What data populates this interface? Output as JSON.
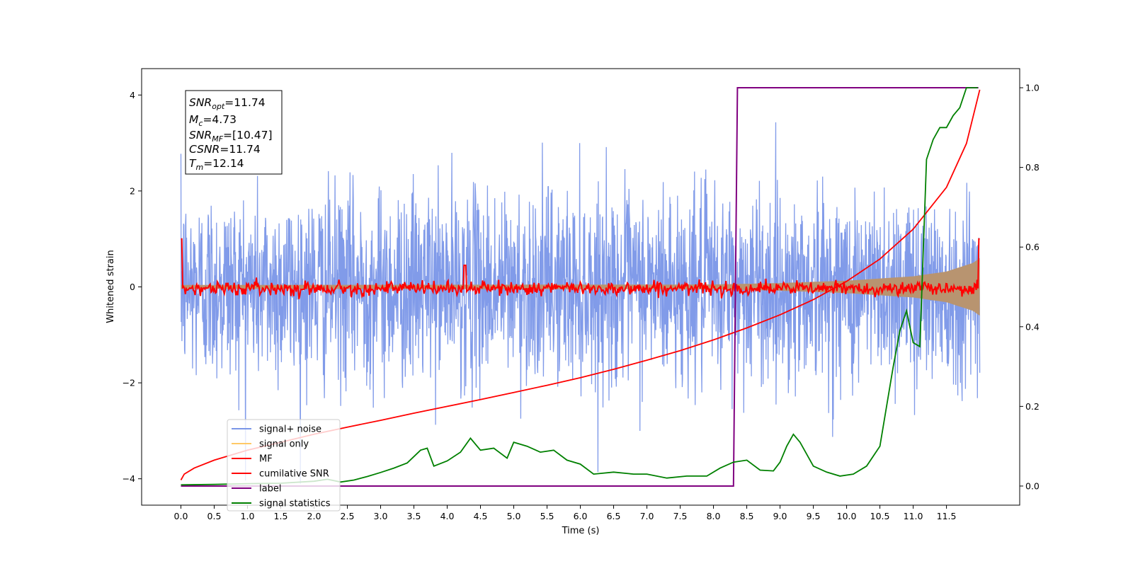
{
  "chart_data": {
    "type": "line",
    "xlabel": "Time (s)",
    "ylabel": "Whitened strain",
    "xlim": [
      -0.59,
      12.6
    ],
    "ylim": [
      -4.55,
      4.55
    ],
    "ylim_right": [
      -0.048,
      1.048
    ],
    "x_ticks": [
      "0.0",
      "0.5",
      "1.0",
      "1.5",
      "2.0",
      "2.5",
      "3.0",
      "3.5",
      "4.0",
      "4.5",
      "5.0",
      "5.5",
      "6.0",
      "6.5",
      "7.0",
      "7.5",
      "8.0",
      "8.5",
      "9.0",
      "9.5",
      "10.0",
      "10.5",
      "11.0",
      "11.5"
    ],
    "y_ticks_left": [
      "-4",
      "-2",
      "0",
      "2",
      "4"
    ],
    "y_ticks_right": [
      "0.0",
      "0.2",
      "0.4",
      "0.6",
      "0.8",
      "1.0"
    ],
    "grid": false,
    "legend_position": "lower-left",
    "legend": [
      {
        "label": "signal+ noise",
        "color": "#7a96e8"
      },
      {
        "label": "signal only",
        "color": "#ffc966"
      },
      {
        "label": "MF",
        "color": "#ff0000"
      },
      {
        "label": "cumilative SNR",
        "color": "#ff0000"
      },
      {
        "label": "label",
        "color": "#800080"
      },
      {
        "label": "signal statistics",
        "color": "#008000"
      }
    ],
    "info_box": [
      {
        "sym": "SNR",
        "sub": "opt",
        "val": "=11.74"
      },
      {
        "sym": "M",
        "sub": "c",
        "val": "=4.73"
      },
      {
        "sym": "SNR",
        "sub": "MF",
        "val": "=[10.47]"
      },
      {
        "sym": "CSNR",
        "sub": "",
        "val": "=11.74"
      },
      {
        "sym": "T",
        "sub": "m",
        "val": "=12.14"
      }
    ],
    "series": [
      {
        "name": "signal+ noise",
        "axis": "left",
        "color": "#7a96e8",
        "description": "Gaussian white noise with injected signal, std about 1.0, peaks up to about 4.1",
        "t_start": 0.0,
        "t_end": 12.0,
        "noise_std": 1.0
      },
      {
        "name": "signal only",
        "axis": "left",
        "color": "#ffc966",
        "envelope": {
          "x": [
            0,
            8,
            9,
            10,
            11,
            11.5,
            11.9,
            12.0
          ],
          "y": [
            0.04,
            0.05,
            0.08,
            0.13,
            0.22,
            0.32,
            0.5,
            0.6
          ]
        }
      },
      {
        "name": "MF",
        "axis": "left",
        "color": "#ff0000",
        "x_start": 0.0,
        "x_end": 12.0,
        "start_value": 1.0,
        "end_value": 1.0,
        "noise_std": 0.07,
        "peaks": [
          [
            0.0,
            1.0
          ],
          [
            4.27,
            0.45
          ],
          [
            12.0,
            1.0
          ]
        ]
      },
      {
        "name": "cumilative SNR",
        "axis": "right",
        "color": "#ff0000",
        "x": [
          0.0,
          0.05,
          0.2,
          0.5,
          1.0,
          1.5,
          2.0,
          2.5,
          3.0,
          3.5,
          4.0,
          4.5,
          5.0,
          5.5,
          6.0,
          6.5,
          7.0,
          7.5,
          8.0,
          8.5,
          9.0,
          9.5,
          10.0,
          10.5,
          11.0,
          11.5,
          11.8,
          12.0
        ],
        "y": [
          0.015,
          0.03,
          0.045,
          0.065,
          0.09,
          0.11,
          0.13,
          0.148,
          0.165,
          0.183,
          0.2,
          0.217,
          0.235,
          0.253,
          0.272,
          0.293,
          0.316,
          0.34,
          0.367,
          0.397,
          0.43,
          0.468,
          0.514,
          0.57,
          0.645,
          0.75,
          0.86,
          0.995
        ]
      },
      {
        "name": "label",
        "axis": "right",
        "color": "#800080",
        "x": [
          0.0,
          8.3,
          8.36,
          11.98
        ],
        "y": [
          0.0,
          0.0,
          1.0,
          1.0
        ]
      },
      {
        "name": "signal statistics",
        "axis": "right",
        "color": "#008000",
        "x": [
          0.0,
          0.5,
          1.0,
          1.5,
          2.0,
          2.2,
          2.4,
          2.6,
          2.8,
          3.0,
          3.2,
          3.4,
          3.6,
          3.7,
          3.8,
          4.0,
          4.2,
          4.35,
          4.5,
          4.7,
          4.9,
          5.0,
          5.2,
          5.4,
          5.6,
          5.8,
          6.0,
          6.2,
          6.5,
          6.8,
          7.0,
          7.3,
          7.6,
          7.9,
          8.1,
          8.3,
          8.5,
          8.7,
          8.9,
          9.0,
          9.1,
          9.2,
          9.3,
          9.5,
          9.7,
          9.9,
          10.1,
          10.3,
          10.5,
          10.6,
          10.7,
          10.8,
          10.9,
          11.0,
          11.1,
          11.2,
          11.3,
          11.4,
          11.5,
          11.6,
          11.7,
          11.8,
          11.9,
          11.97
        ],
        "y": [
          0.003,
          0.004,
          0.006,
          0.007,
          0.012,
          0.017,
          0.01,
          0.015,
          0.024,
          0.034,
          0.045,
          0.058,
          0.09,
          0.095,
          0.05,
          0.063,
          0.085,
          0.12,
          0.09,
          0.095,
          0.07,
          0.11,
          0.1,
          0.085,
          0.09,
          0.065,
          0.055,
          0.03,
          0.035,
          0.03,
          0.03,
          0.02,
          0.025,
          0.025,
          0.045,
          0.06,
          0.065,
          0.04,
          0.038,
          0.06,
          0.1,
          0.13,
          0.11,
          0.05,
          0.035,
          0.025,
          0.03,
          0.05,
          0.1,
          0.2,
          0.3,
          0.39,
          0.44,
          0.36,
          0.35,
          0.82,
          0.87,
          0.9,
          0.9,
          0.93,
          0.95,
          1.0,
          1.0,
          1.0
        ]
      }
    ]
  }
}
